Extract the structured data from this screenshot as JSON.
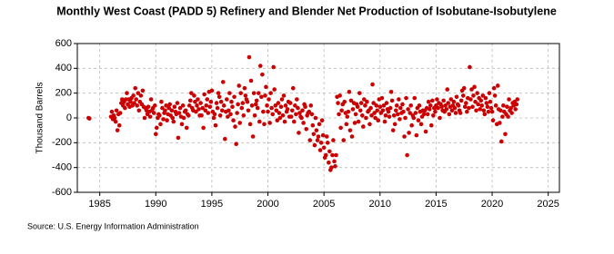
{
  "chart_data": {
    "type": "scatter",
    "title": "Monthly West Coast (PADD 5) Refinery and Blender Net Production of Isobutane-Isobutylene",
    "y_label": "Thousand Barrels",
    "source": "Source: U.S. Energy Information Administration",
    "color": "#cc0000",
    "grid": true,
    "xlim": [
      1983,
      2026
    ],
    "xticks": [
      1985,
      1990,
      1995,
      2000,
      2005,
      2010,
      2015,
      2020,
      2025
    ],
    "ylim": [
      -600,
      600
    ],
    "yticks": [
      -600,
      -400,
      -200,
      0,
      200,
      400,
      600
    ],
    "x": [
      1984,
      1984.08,
      1986,
      1986.08,
      1986.17,
      1986.25,
      1986.33,
      1986.42,
      1986.5,
      1986.58,
      1986.67,
      1986.75,
      1986.83,
      1986.92,
      1987,
      1987.08,
      1987.17,
      1987.25,
      1987.33,
      1987.42,
      1987.5,
      1987.58,
      1987.67,
      1987.75,
      1987.83,
      1987.92,
      1988,
      1988.08,
      1988.17,
      1988.25,
      1988.33,
      1988.42,
      1988.5,
      1988.58,
      1988.67,
      1988.75,
      1988.83,
      1988.92,
      1989,
      1989.08,
      1989.17,
      1989.25,
      1989.33,
      1989.42,
      1989.5,
      1989.58,
      1989.67,
      1989.75,
      1989.83,
      1989.92,
      1990,
      1990.08,
      1990.17,
      1990.25,
      1990.33,
      1990.42,
      1990.5,
      1990.58,
      1990.67,
      1990.75,
      1990.83,
      1990.92,
      1991,
      1991.08,
      1991.17,
      1991.25,
      1991.33,
      1991.42,
      1991.5,
      1991.58,
      1991.67,
      1991.75,
      1991.83,
      1991.92,
      1992,
      1992.08,
      1992.17,
      1992.25,
      1992.33,
      1992.42,
      1992.5,
      1992.58,
      1992.67,
      1992.75,
      1992.83,
      1992.92,
      1993,
      1993.08,
      1993.17,
      1993.25,
      1993.33,
      1993.42,
      1993.5,
      1993.58,
      1993.67,
      1993.75,
      1993.83,
      1993.92,
      1994,
      1994.08,
      1994.17,
      1994.25,
      1994.33,
      1994.42,
      1994.5,
      1994.58,
      1994.67,
      1994.75,
      1994.83,
      1994.92,
      1995,
      1995.08,
      1995.17,
      1995.25,
      1995.33,
      1995.42,
      1995.5,
      1995.58,
      1995.67,
      1995.75,
      1995.83,
      1995.92,
      1996,
      1996.08,
      1996.17,
      1996.25,
      1996.33,
      1996.42,
      1996.5,
      1996.58,
      1996.67,
      1996.75,
      1996.83,
      1996.92,
      1997,
      1997.08,
      1997.17,
      1997.25,
      1997.33,
      1997.42,
      1997.5,
      1997.58,
      1997.67,
      1997.75,
      1997.83,
      1997.92,
      1998,
      1998.08,
      1998.17,
      1998.25,
      1998.33,
      1998.42,
      1998.5,
      1998.58,
      1998.67,
      1998.75,
      1998.83,
      1998.92,
      1999,
      1999.08,
      1999.17,
      1999.25,
      1999.33,
      1999.42,
      1999.5,
      1999.58,
      1999.67,
      1999.75,
      1999.83,
      1999.92,
      2000,
      2000.08,
      2000.17,
      2000.25,
      2000.33,
      2000.42,
      2000.5,
      2000.58,
      2000.67,
      2000.75,
      2000.83,
      2000.92,
      2001,
      2001.08,
      2001.17,
      2001.25,
      2001.33,
      2001.42,
      2001.5,
      2001.58,
      2001.67,
      2001.75,
      2001.83,
      2001.92,
      2002,
      2002.08,
      2002.17,
      2002.25,
      2002.33,
      2002.42,
      2002.5,
      2002.58,
      2002.67,
      2002.75,
      2002.83,
      2002.92,
      2003,
      2003.08,
      2003.17,
      2003.25,
      2003.33,
      2003.42,
      2003.5,
      2003.58,
      2003.67,
      2003.75,
      2003.83,
      2003.92,
      2004,
      2004.08,
      2004.17,
      2004.25,
      2004.33,
      2004.42,
      2004.5,
      2004.58,
      2004.67,
      2004.75,
      2004.83,
      2004.92,
      2005,
      2005.08,
      2005.17,
      2005.25,
      2005.33,
      2005.42,
      2005.5,
      2005.58,
      2005.67,
      2005.75,
      2005.83,
      2005.92,
      2006,
      2006.08,
      2006.17,
      2006.25,
      2006.33,
      2006.42,
      2006.5,
      2006.58,
      2006.67,
      2006.75,
      2006.83,
      2006.92,
      2007,
      2007.08,
      2007.17,
      2007.25,
      2007.33,
      2007.42,
      2007.5,
      2007.58,
      2007.67,
      2007.75,
      2007.83,
      2007.92,
      2008,
      2008.08,
      2008.17,
      2008.25,
      2008.33,
      2008.42,
      2008.5,
      2008.58,
      2008.67,
      2008.75,
      2008.83,
      2008.92,
      2009,
      2009.08,
      2009.17,
      2009.25,
      2009.33,
      2009.42,
      2009.5,
      2009.58,
      2009.67,
      2009.75,
      2009.83,
      2009.92,
      2010,
      2010.08,
      2010.17,
      2010.25,
      2010.33,
      2010.42,
      2010.5,
      2010.58,
      2010.67,
      2010.75,
      2010.83,
      2010.92,
      2011,
      2011.08,
      2011.17,
      2011.25,
      2011.33,
      2011.42,
      2011.5,
      2011.58,
      2011.67,
      2011.75,
      2011.83,
      2011.92,
      2012,
      2012.08,
      2012.17,
      2012.25,
      2012.33,
      2012.42,
      2012.5,
      2012.58,
      2012.67,
      2012.75,
      2012.83,
      2012.92,
      2013,
      2013.08,
      2013.17,
      2013.25,
      2013.33,
      2013.42,
      2013.5,
      2013.58,
      2013.67,
      2013.75,
      2013.83,
      2013.92,
      2014,
      2014.08,
      2014.17,
      2014.25,
      2014.33,
      2014.42,
      2014.5,
      2014.58,
      2014.67,
      2014.75,
      2014.83,
      2014.92,
      2015,
      2015.08,
      2015.17,
      2015.25,
      2015.33,
      2015.42,
      2015.5,
      2015.58,
      2015.67,
      2015.75,
      2015.83,
      2015.92,
      2016,
      2016.08,
      2016.17,
      2016.25,
      2016.33,
      2016.42,
      2016.5,
      2016.58,
      2016.67,
      2016.75,
      2016.83,
      2016.92,
      2017,
      2017.08,
      2017.17,
      2017.25,
      2017.33,
      2017.42,
      2017.5,
      2017.58,
      2017.67,
      2017.75,
      2017.83,
      2017.92,
      2018,
      2018.08,
      2018.17,
      2018.25,
      2018.33,
      2018.42,
      2018.5,
      2018.58,
      2018.67,
      2018.75,
      2018.83,
      2018.92,
      2019,
      2019.08,
      2019.17,
      2019.25,
      2019.33,
      2019.42,
      2019.5,
      2019.58,
      2019.67,
      2019.75,
      2019.83,
      2019.92,
      2020,
      2020.08,
      2020.17,
      2020.25,
      2020.33,
      2020.42,
      2020.5,
      2020.58,
      2020.67,
      2020.75,
      2020.83,
      2020.92,
      2021,
      2021.08,
      2021.17,
      2021.25,
      2021.33,
      2021.42,
      2021.5,
      2021.58,
      2021.67,
      2021.75,
      2021.83,
      2021.92,
      2022,
      2022.08,
      2022.17,
      2022.25
    ],
    "values": [
      0,
      -5,
      10,
      50,
      -10,
      20,
      0,
      -30,
      60,
      -100,
      30,
      -60,
      40,
      120,
      150,
      100,
      130,
      80,
      150,
      200,
      110,
      150,
      90,
      130,
      160,
      100,
      180,
      120,
      240,
      150,
      100,
      200,
      60,
      130,
      180,
      110,
      220,
      90,
      0,
      80,
      60,
      30,
      90,
      50,
      10,
      150,
      60,
      80,
      40,
      100,
      -130,
      -80,
      0,
      30,
      20,
      -50,
      130,
      80,
      -10,
      40,
      60,
      100,
      -20,
      30,
      80,
      110,
      20,
      60,
      0,
      -30,
      90,
      50,
      30,
      120,
      -160,
      40,
      80,
      10,
      -50,
      100,
      0,
      50,
      60,
      -80,
      30,
      20,
      100,
      140,
      200,
      80,
      60,
      180,
      130,
      50,
      100,
      150,
      70,
      20,
      120,
      20,
      80,
      -80,
      190,
      60,
      100,
      150,
      40,
      210,
      90,
      130,
      220,
      50,
      0,
      30,
      -60,
      120,
      80,
      200,
      170,
      20,
      130,
      60,
      290,
      100,
      -170,
      50,
      150,
      10,
      60,
      200,
      30,
      130,
      90,
      -20,
      170,
      -70,
      -210,
      40,
      110,
      260,
      -40,
      200,
      80,
      120,
      20,
      240,
      180,
      150,
      130,
      60,
      490,
      -50,
      300,
      100,
      -150,
      200,
      20,
      110,
      140,
      80,
      200,
      -30,
      420,
      170,
      350,
      50,
      -50,
      180,
      250,
      100,
      50,
      150,
      -40,
      200,
      80,
      30,
      410,
      230,
      100,
      60,
      -20,
      120,
      40,
      0,
      90,
      150,
      20,
      180,
      -30,
      100,
      50,
      70,
      130,
      10,
      120,
      10,
      60,
      240,
      -30,
      100,
      30,
      150,
      80,
      -120,
      40,
      10,
      0,
      60,
      -40,
      110,
      90,
      -90,
      20,
      40,
      50,
      -180,
      100,
      30,
      -60,
      -130,
      -220,
      0,
      -100,
      -180,
      -150,
      -50,
      -260,
      -200,
      -20,
      -140,
      -240,
      -320,
      -300,
      -150,
      -200,
      -360,
      -270,
      -420,
      -400,
      -300,
      -180,
      -350,
      -390,
      -300,
      170,
      120,
      30,
      180,
      -80,
      60,
      110,
      -180,
      130,
      40,
      -50,
      10,
      50,
      210,
      -100,
      140,
      -150,
      70,
      120,
      -40,
      30,
      110,
      90,
      -30,
      200,
      60,
      120,
      20,
      -70,
      150,
      100,
      0,
      130,
      50,
      60,
      -50,
      80,
      20,
      270,
      120,
      40,
      0,
      100,
      60,
      -20,
      150,
      90,
      40,
      160,
      60,
      100,
      -30,
      20,
      120,
      70,
      50,
      10,
      80,
      210,
      140,
      -100,
      20,
      -50,
      60,
      100,
      30,
      150,
      -10,
      80,
      40,
      110,
      50,
      -150,
      0,
      160,
      -300,
      70,
      -120,
      40,
      100,
      -60,
      20,
      0,
      160,
      40,
      -140,
      80,
      -20,
      100,
      50,
      -50,
      10,
      60,
      30,
      60,
      -110,
      80,
      30,
      130,
      70,
      100,
      -60,
      140,
      20,
      80,
      50,
      100,
      150,
      80,
      120,
      0,
      110,
      90,
      60,
      140,
      50,
      100,
      70,
      230,
      120,
      30,
      90,
      150,
      60,
      100,
      130,
      80,
      40,
      170,
      110,
      100,
      60,
      40,
      140,
      220,
      180,
      240,
      90,
      120,
      50,
      160,
      80,
      410,
      150,
      230,
      90,
      180,
      250,
      130,
      60,
      200,
      110,
      160,
      70,
      140,
      100,
      180,
      60,
      30,
      160,
      120,
      90,
      50,
      200,
      130,
      80,
      50,
      -20,
      240,
      180,
      100,
      -50,
      260,
      70,
      -40,
      60,
      -190,
      10,
      100,
      50,
      -130,
      30,
      90,
      10,
      150,
      60,
      80,
      40,
      120,
      100,
      130,
      70,
      110,
      150
    ]
  }
}
